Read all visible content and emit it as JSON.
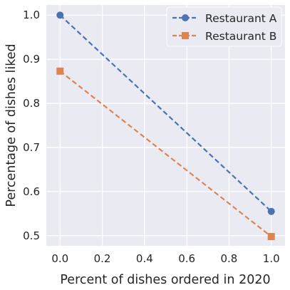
{
  "chart_data": {
    "type": "line",
    "title": "",
    "xlabel": "Percent of dishes ordered in 2020",
    "ylabel": "Percentage of dishes liked",
    "xlim": [
      -0.065,
      1.065
    ],
    "ylim": [
      0.477,
      1.023
    ],
    "x_ticks": [
      0.0,
      0.2,
      0.4,
      0.6,
      0.8,
      1.0
    ],
    "x_tick_labels": [
      "0.0",
      "0.2",
      "0.4",
      "0.6",
      "0.8",
      "1.0"
    ],
    "y_ticks": [
      0.5,
      0.6,
      0.7,
      0.8,
      0.9,
      1.0
    ],
    "y_tick_labels": [
      "0.5",
      "0.6",
      "0.7",
      "0.8",
      "0.9",
      "1.0"
    ],
    "grid": true,
    "legend_position": "top-right",
    "series": [
      {
        "name": "Restaurant A",
        "color": "#4c72b0",
        "marker": "circle",
        "linestyle": "dashed",
        "x": [
          0.0,
          1.0
        ],
        "y": [
          1.0,
          0.555
        ]
      },
      {
        "name": "Restaurant B",
        "color": "#dd8452",
        "marker": "square",
        "linestyle": "dashed",
        "x": [
          0.0,
          1.0
        ],
        "y": [
          0.873,
          0.498
        ]
      }
    ]
  },
  "style": {
    "plot_background": "#eaeaf2",
    "grid_color": "#ffffff",
    "text_color": "#262626"
  }
}
